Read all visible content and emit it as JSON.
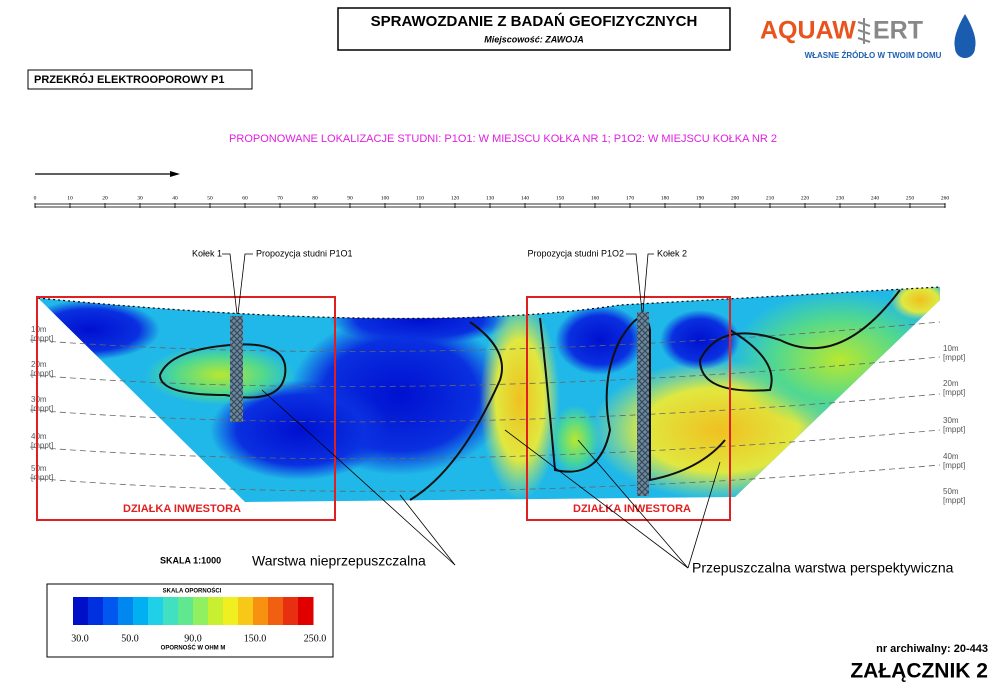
{
  "header": {
    "title": "SPRAWOZDANIE Z BADAŃ GEOFIZYCZNYCH",
    "subtitle": "Miejscowość: ZAWOJA"
  },
  "logo": {
    "name_left": "AQUAW",
    "name_right": "ERT",
    "tagline": "WŁASNE ŹRÓDŁO W TWOIM DOMU"
  },
  "section_title": "PRZEKRÓJ ELEKTROOPOROWY P1",
  "proposal": "PROPONOWANE LOKALIZACJE STUDNI: P1O1: W MIEJSCU KOŁKA NR 1; P1O2: W MIEJSCU KOŁKA NR 2",
  "distance_ticks": [
    0,
    10,
    20,
    30,
    40,
    50,
    60,
    70,
    80,
    90,
    100,
    110,
    120,
    130,
    140,
    150,
    160,
    170,
    180,
    190,
    200,
    210,
    220,
    230,
    240,
    250,
    260
  ],
  "depth_left": [
    {
      "depth": "10m",
      "unit": "[mppt]"
    },
    {
      "depth": "20m",
      "unit": "[mppt]"
    },
    {
      "depth": "30m",
      "unit": "[mppt]"
    },
    {
      "depth": "40m",
      "unit": "[mppt]"
    },
    {
      "depth": "50m",
      "unit": "[mppt]"
    }
  ],
  "depth_right": [
    {
      "depth": "10m",
      "unit": "[mppt]"
    },
    {
      "depth": "20m",
      "unit": "[mppt]"
    },
    {
      "depth": "30m",
      "unit": "[mppt]"
    },
    {
      "depth": "40m",
      "unit": "[mppt]"
    },
    {
      "depth": "50m",
      "unit": "[mppt]"
    }
  ],
  "annotations": {
    "kolek1": "Kołek 1",
    "well1": "Propozycja studni P1O1",
    "well2": "Propozycja studni P1O2",
    "kolek2": "Kołek 2"
  },
  "plots": [
    "DZIAŁKA INWESTORA",
    "DZIAŁKA INWESTORA"
  ],
  "layers": {
    "impermeable": "Warstwa nieprzepuszczalna",
    "permeable": "Przepuszczalna warstwa perspektywiczna"
  },
  "scale": "SKALA 1:1000",
  "legend": {
    "title": "SKALA OPORNOŚCI",
    "labels": [
      "30.0",
      "50.0",
      "90.0",
      "150.0",
      "250.0"
    ],
    "unit": "OPORNOŚĆ W OHM M"
  },
  "footer": {
    "archive": "nr archiwalny: 20-443",
    "appendix": "ZAŁĄCZNIK 2"
  }
}
